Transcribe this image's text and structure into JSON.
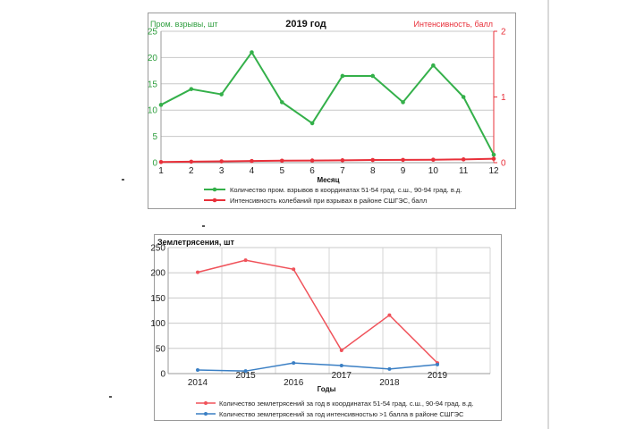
{
  "chart_data": [
    {
      "type": "line",
      "title": "2019 год",
      "ylabel_left": "Пром. взрывы, шт",
      "ylabel_right": "Интенсивность, балл",
      "xlabel": "Месяц",
      "categories": [
        "1",
        "2",
        "3",
        "4",
        "5",
        "6",
        "7",
        "8",
        "9",
        "10",
        "11",
        "12"
      ],
      "ylim_left": [
        0,
        25
      ],
      "yticks_left": [
        "0",
        "5",
        "10",
        "15",
        "20",
        "25"
      ],
      "ylim_right": [
        0,
        2
      ],
      "yticks_right": [
        "0",
        "1",
        "2"
      ],
      "colors": {
        "left_axis": "#2e9e3e",
        "right_axis": "#e8303a"
      },
      "series": [
        {
          "name": "Количество пром. взрывов в координатах 51-54 град. с.ш., 90-94 град. в.д.",
          "axis": "left",
          "color": "#34b04a",
          "values": [
            11,
            14,
            13,
            21,
            11.5,
            7.5,
            16.5,
            16.5,
            11.5,
            18.5,
            12.5,
            1.5
          ]
        },
        {
          "name": "Интенсивность колебаний при взрывах в районе СШГЭС, балл",
          "axis": "right",
          "color": "#e8303a",
          "values": [
            0.01,
            0.015,
            0.02,
            0.025,
            0.03,
            0.033,
            0.036,
            0.04,
            0.042,
            0.045,
            0.05,
            0.06
          ]
        }
      ]
    },
    {
      "type": "line",
      "title": "Землетрясения, шт",
      "ylabel": "Землетрясения, шт",
      "xlabel": "Годы",
      "categories": [
        "2014",
        "2015",
        "2016",
        "2017",
        "2018",
        "2019"
      ],
      "ylim": [
        0,
        250
      ],
      "yticks": [
        "0",
        "50",
        "100",
        "150",
        "200",
        "250"
      ],
      "series": [
        {
          "name": "Количество землетрясений за год в координатах 51-54 град. с.ш., 90-94 град. в.д.",
          "color": "#f0525a",
          "values": [
            201,
            225,
            207,
            46,
            116,
            21
          ]
        },
        {
          "name": "Количество землетрясений за год интенсивностью >1 балла в районе СШГЭС",
          "color": "#3a7fc4",
          "values": [
            7,
            5,
            21,
            16,
            9,
            18
          ]
        }
      ]
    }
  ]
}
